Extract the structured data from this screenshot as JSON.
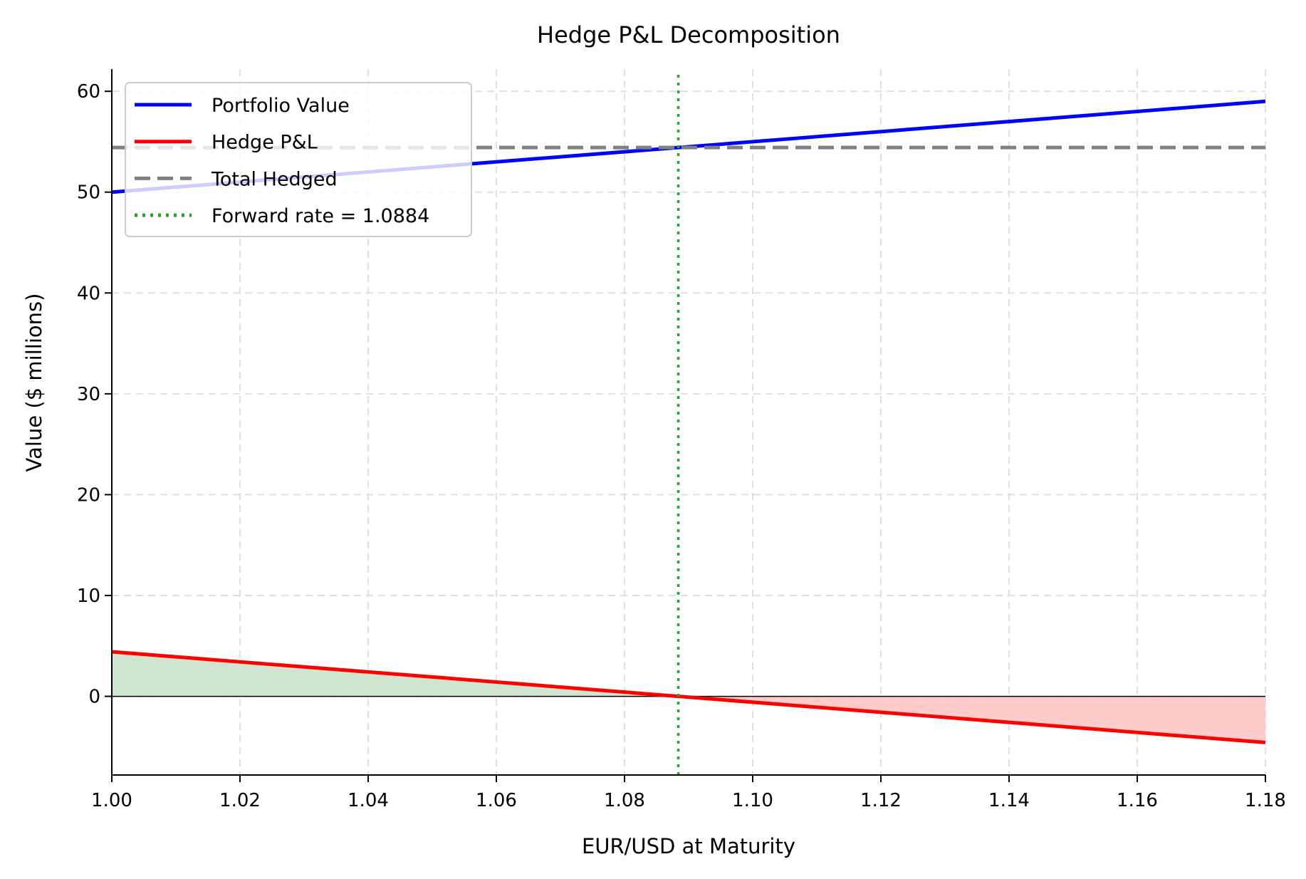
{
  "chart_data": {
    "type": "line",
    "title": "Hedge P&L Decomposition",
    "xlabel": "EUR/USD at Maturity",
    "ylabel": "Value ($ millions)",
    "xlim": [
      1.0,
      1.18
    ],
    "ylim": [
      -7.8,
      62.2
    ],
    "xticks": [
      "1.00",
      "1.02",
      "1.04",
      "1.06",
      "1.08",
      "1.10",
      "1.12",
      "1.14",
      "1.16",
      "1.18"
    ],
    "yticks": [
      "0",
      "10",
      "20",
      "30",
      "40",
      "50",
      "60"
    ],
    "grid": true,
    "legend_position": "top-left",
    "x": [
      1.0,
      1.18
    ],
    "series": [
      {
        "name": "Portfolio Value",
        "values": [
          50.0,
          59.0
        ],
        "color": "#0000ff",
        "style": "solid"
      },
      {
        "name": "Hedge P&L",
        "values": [
          4.42,
          -4.58
        ],
        "color": "#ff0000",
        "style": "solid"
      },
      {
        "name": "Total Hedged",
        "values": [
          54.42,
          54.42
        ],
        "color": "#808080",
        "style": "dashed"
      }
    ],
    "vline": {
      "name": "Forward rate = 1.0884",
      "x": 1.0884,
      "color": "#2ca02c",
      "style": "dotted"
    },
    "fills": {
      "gain_color": "#cfe5cf",
      "loss_color": "#ffcccc"
    }
  }
}
